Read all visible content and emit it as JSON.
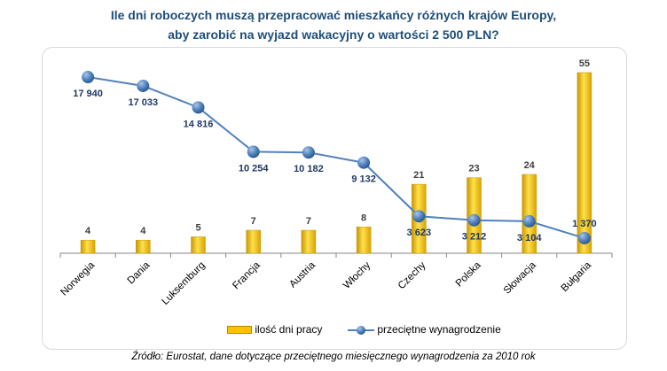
{
  "title_line1": "Ile dni roboczych muszą przepracować mieszkańcy różnych krajów Europy,",
  "title_line2": "aby zarobić na wyjazd wakacyjny o wartości 2 500 PLN?",
  "source": "Źródło: Eurostat, dane dotyczące przeciętnego  miesięcznego  wynagrodzenia za 2010 rok",
  "chart_data": {
    "type": "bar+line",
    "categories": [
      "Norwegia",
      "Dania",
      "Luksemburg",
      "Francja",
      "Austria",
      "Włochy",
      "Czechy",
      "Polska",
      "Słowacja",
      "Bułgaria"
    ],
    "series": [
      {
        "name": "ilość dni pracy",
        "type": "bar",
        "color": "#ffc000",
        "values": [
          4,
          4,
          5,
          7,
          7,
          8,
          21,
          23,
          24,
          55
        ],
        "labels": [
          "4",
          "4",
          "5",
          "7",
          "7",
          "8",
          "21",
          "23",
          "24",
          "55"
        ]
      },
      {
        "name": "przeciętne wynagrodzenie",
        "type": "line",
        "color": "#4f81bd",
        "values": [
          17940,
          17033,
          14816,
          10254,
          10182,
          9132,
          3623,
          3212,
          3104,
          1370
        ],
        "labels": [
          "17 940",
          "17 033",
          "14 816",
          "10 254",
          "10 182",
          "9 132",
          "3 623",
          "3 212",
          "3 104",
          "1 370"
        ]
      }
    ],
    "legend_position": "bottom",
    "grid": false
  }
}
